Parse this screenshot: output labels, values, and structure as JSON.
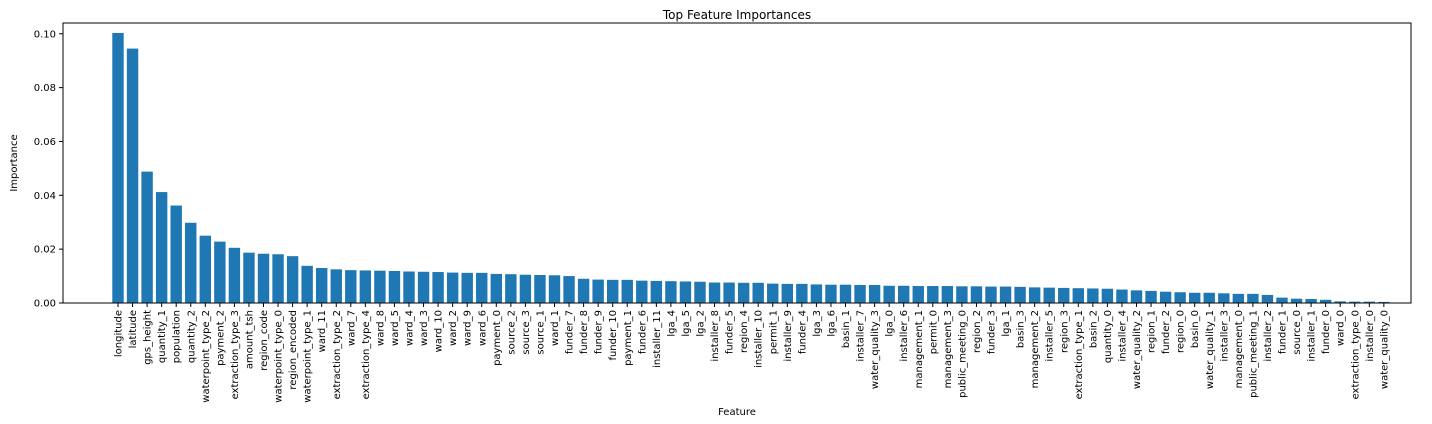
{
  "chart_data": {
    "type": "bar",
    "title": "Top Feature Importances",
    "xlabel": "Feature",
    "ylabel": "Importance",
    "ylim": [
      0,
      0.104
    ],
    "yticks": [
      0.0,
      0.02,
      0.04,
      0.06,
      0.08,
      0.1
    ],
    "ytick_labels": [
      "0.00",
      "0.02",
      "0.04",
      "0.06",
      "0.08",
      "0.10"
    ],
    "bar_color": "#1f77b4",
    "grid": false,
    "legend": "none",
    "categories": [
      "longitude",
      "latitude",
      "gps_height",
      "quantity_1",
      "population",
      "quantity_2",
      "waterpoint_type_2",
      "payment_2",
      "extraction_type_3",
      "amount_tsh",
      "region_code",
      "waterpoint_type_0",
      "region_encoded",
      "waterpoint_type_1",
      "ward_11",
      "extraction_type_2",
      "ward_7",
      "extraction_type_4",
      "ward_8",
      "ward_5",
      "ward_4",
      "ward_3",
      "ward_10",
      "ward_2",
      "ward_9",
      "ward_6",
      "payment_0",
      "source_2",
      "source_3",
      "source_1",
      "ward_1",
      "funder_7",
      "funder_8",
      "funder_9",
      "funder_10",
      "payment_1",
      "funder_6",
      "installer_11",
      "lga_4",
      "lga_5",
      "lga_2",
      "installer_8",
      "funder_5",
      "region_4",
      "installer_10",
      "permit_1",
      "installer_9",
      "funder_4",
      "lga_3",
      "lga_6",
      "basin_1",
      "installer_7",
      "water_quality_3",
      "lga_0",
      "installer_6",
      "management_1",
      "permit_0",
      "management_3",
      "public_meeting_0",
      "region_2",
      "funder_3",
      "lga_1",
      "basin_3",
      "management_2",
      "installer_5",
      "region_3",
      "extraction_type_1",
      "basin_2",
      "quantity_0",
      "installer_4",
      "water_quality_2",
      "region_1",
      "funder_2",
      "region_0",
      "basin_0",
      "water_quality_1",
      "installer_3",
      "management_0",
      "public_meeting_1",
      "installer_2",
      "funder_1",
      "source_0",
      "installer_1",
      "funder_0",
      "ward_0",
      "extraction_type_0",
      "installer_0",
      "water_quality_0"
    ],
    "values": [
      0.1003,
      0.0945,
      0.0488,
      0.0412,
      0.0362,
      0.0298,
      0.025,
      0.0228,
      0.0205,
      0.0187,
      0.0183,
      0.0181,
      0.0174,
      0.0138,
      0.013,
      0.0125,
      0.0122,
      0.0121,
      0.012,
      0.0119,
      0.0117,
      0.0116,
      0.0115,
      0.0113,
      0.0112,
      0.0112,
      0.0108,
      0.0107,
      0.0105,
      0.0104,
      0.0103,
      0.01,
      0.009,
      0.0087,
      0.0086,
      0.0086,
      0.0083,
      0.0082,
      0.0081,
      0.008,
      0.0079,
      0.0076,
      0.0076,
      0.0075,
      0.0075,
      0.0072,
      0.0071,
      0.0071,
      0.0069,
      0.0068,
      0.0068,
      0.0067,
      0.0067,
      0.0064,
      0.0064,
      0.0063,
      0.0063,
      0.0063,
      0.0062,
      0.0062,
      0.0061,
      0.0061,
      0.006,
      0.0058,
      0.0057,
      0.0056,
      0.0055,
      0.0054,
      0.0053,
      0.005,
      0.0047,
      0.0045,
      0.0042,
      0.004,
      0.0038,
      0.0038,
      0.0036,
      0.0034,
      0.0034,
      0.003,
      0.002,
      0.0016,
      0.0015,
      0.0012,
      0.0006,
      0.0005,
      0.0005,
      0.0004
    ]
  }
}
